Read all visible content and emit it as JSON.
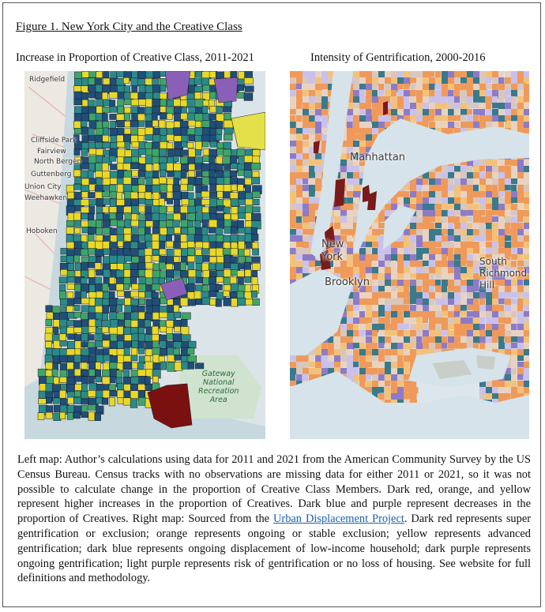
{
  "figure": {
    "title": "Figure 1. New York City and the Creative Class"
  },
  "left_map": {
    "caption": "Increase in Proportion of Creative Class, 2011-2021",
    "labels": {
      "ridgefield": "Ridgefield",
      "cliffside": "Cliffside Park",
      "fairview": "Fairview",
      "north_bergen": "North Bergen",
      "guttenberg": "Guttenberg",
      "union_city": "Union City",
      "weehawken": "Weehawken",
      "hoboken": "Hoboken",
      "gateway": "Gateway\nNational\nRecreation\nArea"
    },
    "colors": {
      "dark_blue": "#1f4e79",
      "teal": "#2a8a8a",
      "green": "#3fa56a",
      "yellow": "#e8d82a",
      "purple": "#8a5fb8",
      "dark_red": "#7b1010"
    }
  },
  "right_map": {
    "caption": "Intensity of Gentrification, 2000-2016",
    "labels": {
      "manhattan": "Manhattan",
      "new_york": "New\nYork",
      "brooklyn": "Brooklyn",
      "south_richmond_hill": "South\nRichmond\nHill"
    },
    "colors": {
      "dark_red": "#7a1a1a",
      "orange": "#ef9a5a",
      "yellow": "#f3c27a",
      "dark_blue": "#3a7a8a",
      "dark_purple": "#8e7bc7",
      "light_purple": "#c9c1ec"
    }
  },
  "notes": {
    "part1": "Left map: Author’s calculations using data for 2011 and 2021 from the American Community Survey by the US Census Bureau. Census tracks with no observations are missing data for either 2011 or 2021, so it was not possible to calculate change in the proportion of Creative Class Members. Dark red, orange, and yellow represent higher increases in the proportion of Creatives. Dark blue and purple represent decreases in the proportion of Creatives. Right map: Sourced from the ",
    "link": "Urban Displacement Project",
    "part2": ". Dark red represents super gentrification or exclusion; orange represents ongoing or stable exclusion; yellow represents advanced gentrification; dark blue represents ongoing displacement of low-income household; dark purple represents ongoing gentrification; light purple represents risk of gentrification or no loss of housing. See website for full definitions and methodology."
  }
}
